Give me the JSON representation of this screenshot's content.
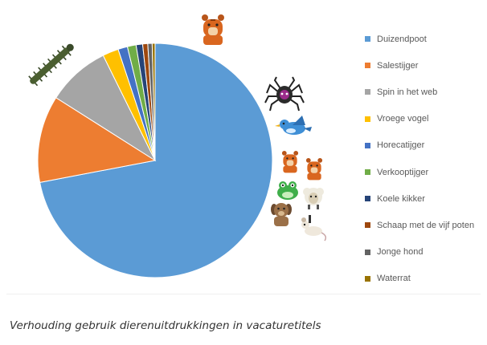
{
  "chart_data": {
    "type": "pie",
    "categories": [
      "Duizendpoot",
      "Salestijger",
      "Spin in het web",
      "Vroege vogel",
      "Horecatijger",
      "Verkooptijger",
      "Koele kikker",
      "Schaap met de vijf poten",
      "Jonge hond",
      "Waterrat"
    ],
    "values": [
      72.0,
      12.0,
      8.7,
      2.2,
      1.3,
      1.2,
      0.9,
      0.7,
      0.6,
      0.4
    ],
    "colors": [
      "#5b9bd5",
      "#ed7d31",
      "#a5a5a5",
      "#ffc000",
      "#4472c4",
      "#70ad47",
      "#264478",
      "#9e480e",
      "#636363",
      "#997300"
    ],
    "icons": [
      "centipede-icon",
      "tiger-icon",
      "spider-icon",
      "bird-icon",
      "tiger-icon",
      "tiger-icon",
      "frog-icon",
      "sheep-icon",
      "dog-icon",
      "rat-icon"
    ],
    "legend_position": "right",
    "caption": "Verhouding gebruik dierenuitdrukkingen in vacaturetitels"
  }
}
